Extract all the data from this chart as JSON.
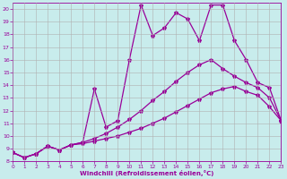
{
  "xlabel": "Windchill (Refroidissement éolien,°C)",
  "xlim": [
    0,
    23
  ],
  "ylim": [
    8,
    20.5
  ],
  "xticks": [
    0,
    1,
    2,
    3,
    4,
    5,
    6,
    7,
    8,
    9,
    10,
    11,
    12,
    13,
    14,
    15,
    16,
    17,
    18,
    19,
    20,
    21,
    22,
    23
  ],
  "yticks": [
    8,
    9,
    10,
    11,
    12,
    13,
    14,
    15,
    16,
    17,
    18,
    19,
    20
  ],
  "bg_color": "#c8ecec",
  "line_color": "#990099",
  "grid_color": "#b0b0b0",
  "line1_x": [
    0,
    1,
    2,
    3,
    4,
    5,
    6,
    7,
    8,
    9,
    10,
    11,
    12,
    13,
    14,
    15,
    16,
    17,
    18,
    19,
    20,
    21,
    22,
    23
  ],
  "line1_y": [
    8.7,
    8.3,
    8.6,
    9.2,
    8.9,
    9.3,
    9.4,
    9.6,
    9.8,
    10.0,
    10.3,
    10.6,
    11.0,
    11.4,
    11.9,
    12.4,
    12.9,
    13.4,
    13.7,
    13.9,
    13.5,
    13.2,
    12.3,
    11.2
  ],
  "line2_x": [
    0,
    1,
    2,
    3,
    4,
    5,
    6,
    7,
    8,
    9,
    10,
    11,
    12,
    13,
    14,
    15,
    16,
    17,
    18,
    19,
    20,
    21,
    22,
    23
  ],
  "line2_y": [
    8.7,
    8.3,
    8.6,
    9.2,
    8.9,
    9.3,
    9.5,
    9.8,
    10.2,
    10.7,
    11.3,
    12.0,
    12.8,
    13.5,
    14.3,
    15.0,
    15.6,
    16.0,
    15.3,
    14.7,
    14.2,
    13.8,
    13.0,
    11.2
  ],
  "line3_x": [
    0,
    1,
    2,
    3,
    4,
    5,
    6,
    7,
    8,
    9,
    10,
    11,
    12,
    13,
    14,
    15,
    16,
    17,
    18,
    19,
    20,
    21,
    22,
    23
  ],
  "line3_y": [
    8.7,
    8.3,
    8.6,
    9.2,
    8.9,
    9.3,
    9.5,
    13.7,
    10.7,
    11.2,
    16.0,
    20.3,
    17.9,
    18.5,
    19.7,
    19.2,
    17.5,
    20.3,
    20.3,
    17.5,
    16.0,
    14.2,
    13.8,
    11.2
  ],
  "marker": "*",
  "markersize": 3,
  "linewidth": 0.9
}
